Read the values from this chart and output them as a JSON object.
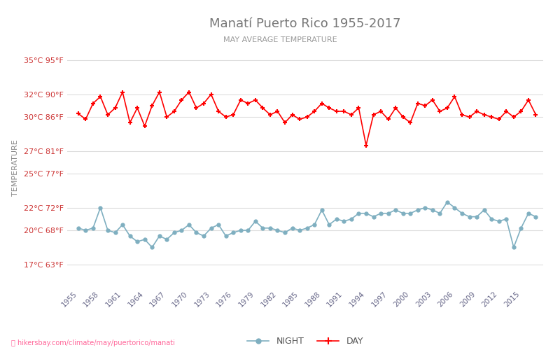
{
  "title": "Manatí Puerto Rico 1955-2017",
  "subtitle": "MAY AVERAGE TEMPERATURE",
  "ylabel": "TEMPERATURE",
  "title_color": "#777777",
  "subtitle_color": "#999999",
  "ylabel_color": "#888888",
  "background_color": "#ffffff",
  "grid_color": "#dddddd",
  "years": [
    1955,
    1956,
    1957,
    1958,
    1959,
    1960,
    1961,
    1962,
    1963,
    1964,
    1965,
    1966,
    1967,
    1968,
    1969,
    1970,
    1971,
    1972,
    1973,
    1974,
    1975,
    1976,
    1977,
    1978,
    1979,
    1980,
    1981,
    1982,
    1983,
    1984,
    1985,
    1986,
    1987,
    1988,
    1989,
    1990,
    1991,
    1992,
    1993,
    1994,
    1995,
    1996,
    1997,
    1998,
    1999,
    2000,
    2001,
    2002,
    2003,
    2004,
    2005,
    2006,
    2007,
    2008,
    2009,
    2010,
    2011,
    2012,
    2013,
    2014,
    2015,
    2016,
    2017
  ],
  "day_temps": [
    30.3,
    29.8,
    31.2,
    31.8,
    30.2,
    30.8,
    32.2,
    29.5,
    30.8,
    29.2,
    31.0,
    32.2,
    30.0,
    30.5,
    31.5,
    32.2,
    30.8,
    31.2,
    32.0,
    30.5,
    30.0,
    30.2,
    31.5,
    31.2,
    31.5,
    30.8,
    30.2,
    30.5,
    29.5,
    30.2,
    29.8,
    30.0,
    30.5,
    31.2,
    30.8,
    30.5,
    30.5,
    30.2,
    30.8,
    27.5,
    30.2,
    30.5,
    29.8,
    30.8,
    30.0,
    29.5,
    31.2,
    31.0,
    31.5,
    30.5,
    30.8,
    31.8,
    30.2,
    30.0,
    30.5,
    30.2,
    30.0,
    29.8,
    30.5,
    30.0,
    30.5,
    31.5,
    30.2
  ],
  "night_temps": [
    20.2,
    20.0,
    20.2,
    22.0,
    20.0,
    19.8,
    20.5,
    19.5,
    19.0,
    19.2,
    18.5,
    19.5,
    19.2,
    19.8,
    20.0,
    20.5,
    19.8,
    19.5,
    20.2,
    20.5,
    19.5,
    19.8,
    20.0,
    20.0,
    20.8,
    20.2,
    20.2,
    20.0,
    19.8,
    20.2,
    20.0,
    20.2,
    20.5,
    21.8,
    20.5,
    21.0,
    20.8,
    21.0,
    21.5,
    21.5,
    21.2,
    21.5,
    21.5,
    21.8,
    21.5,
    21.5,
    21.8,
    22.0,
    21.8,
    21.5,
    22.5,
    22.0,
    21.5,
    21.2,
    21.2,
    21.8,
    21.0,
    20.8,
    21.0,
    18.5,
    20.2,
    21.5,
    21.2
  ],
  "day_color": "#ff0000",
  "night_color": "#7fafc0",
  "yticks_c": [
    17,
    20,
    22,
    25,
    27,
    30,
    32,
    35
  ],
  "yticks_f": [
    63,
    68,
    72,
    77,
    81,
    86,
    90,
    95
  ],
  "xtick_years": [
    1955,
    1958,
    1961,
    1964,
    1967,
    1970,
    1973,
    1976,
    1979,
    1982,
    1985,
    1988,
    1991,
    1994,
    1997,
    2000,
    2003,
    2006,
    2009,
    2012,
    2015
  ],
  "watermark": "hikersbay.com/climate/may/puertorico/manati",
  "watermark_color": "#ff6699",
  "ymin": 15,
  "ymax": 36
}
